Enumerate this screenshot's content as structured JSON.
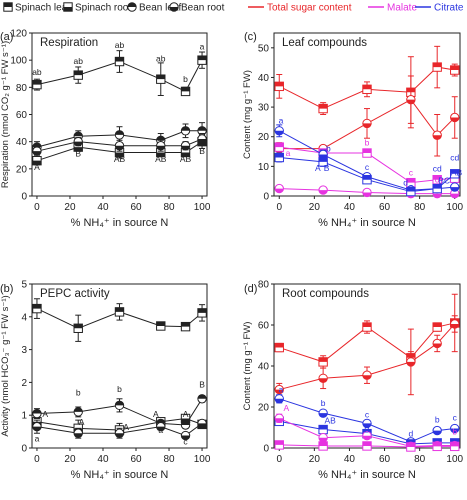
{
  "legend_left": [
    {
      "label": "Spinach leaf",
      "fill": "top"
    },
    {
      "label": "Spinach root",
      "fill": "bottom"
    },
    {
      "label": "Bean leaf",
      "fill": "top"
    },
    {
      "label": "Bean root",
      "fill": "bottom"
    }
  ],
  "legend_right": [
    {
      "label": "Total sugar content",
      "color": "#e8262a"
    },
    {
      "label": "Malate",
      "color": "#e633e0"
    },
    {
      "label": "Citrate",
      "color": "#2b35e0"
    }
  ],
  "colors": {
    "sugar": "#e8262a",
    "malate": "#e633e0",
    "citrate": "#2b35e0",
    "axis": "#222222"
  },
  "chart_data": [
    {
      "panel": "(a)",
      "title": "Respiration",
      "type": "line",
      "ylabel": "Respiration (nmol CO₂ g⁻¹ FW s⁻¹)",
      "xlabel": "% NH₄⁺ in source N",
      "x": [
        0,
        25,
        50,
        75,
        90,
        100
      ],
      "xticks": [
        0,
        20,
        40,
        60,
        80,
        100
      ],
      "ylim": [
        0,
        120
      ],
      "yticks": [
        0,
        20,
        40,
        60,
        80,
        100,
        120
      ],
      "series": [
        {
          "name": "Spinach leaf",
          "marker": "square",
          "half": "top",
          "values": [
            82,
            89,
            99,
            86,
            77,
            100
          ],
          "errors": [
            4,
            6,
            8,
            12,
            3,
            6
          ]
        },
        {
          "name": "Spinach root",
          "marker": "square",
          "half": "bottom",
          "values": [
            26,
            36,
            32,
            32,
            32,
            40
          ],
          "errors": [
            3,
            3,
            4,
            3,
            2,
            5
          ]
        },
        {
          "name": "Bean leaf",
          "marker": "circle",
          "half": "top",
          "values": [
            36,
            44,
            45,
            41,
            48,
            48
          ],
          "errors": [
            4,
            4,
            6,
            5,
            5,
            6
          ]
        },
        {
          "name": "Bean root",
          "marker": "circle",
          "half": "bottom",
          "values": [
            33,
            40,
            37,
            37,
            37,
            42
          ],
          "errors": [
            3,
            3,
            4,
            4,
            3,
            4
          ]
        }
      ],
      "annotations": [
        {
          "text": "ab",
          "x": 0,
          "y": 89
        },
        {
          "text": "ab",
          "x": 25,
          "y": 97
        },
        {
          "text": "ab",
          "x": 50,
          "y": 109
        },
        {
          "text": "ab",
          "x": 75,
          "y": 99
        },
        {
          "text": "b",
          "x": 90,
          "y": 84
        },
        {
          "text": "a",
          "x": 100,
          "y": 108
        },
        {
          "text": "A",
          "x": 0,
          "y": 19
        },
        {
          "text": "B",
          "x": 25,
          "y": 29
        },
        {
          "text": "AB",
          "x": 50,
          "y": 25
        },
        {
          "text": "AB",
          "x": 75,
          "y": 25
        },
        {
          "text": "AB",
          "x": 90,
          "y": 25
        },
        {
          "text": "B",
          "x": 100,
          "y": 31
        }
      ]
    },
    {
      "panel": "(b)",
      "title": "PEPC activity",
      "type": "line",
      "ylabel": "Activity (nmol HCO₃⁻ g⁻¹ FW s⁻¹)",
      "xlabel": "% NH₄⁺ in source N",
      "x": [
        0,
        25,
        50,
        75,
        90,
        100
      ],
      "xticks": [
        0,
        20,
        40,
        60,
        80,
        100
      ],
      "ylim": [
        0,
        5
      ],
      "yticks": [
        0,
        1,
        2,
        3,
        4,
        5
      ],
      "series": [
        {
          "name": "Spinach leaf",
          "marker": "square",
          "half": "top",
          "values": [
            4.25,
            3.65,
            4.15,
            3.72,
            3.7,
            4.12
          ],
          "errors": [
            0.3,
            0.4,
            0.25,
            0.08,
            0.08,
            0.25
          ]
        },
        {
          "name": "Spinach root",
          "marker": "square",
          "half": "bottom",
          "values": [
            0.8,
            0.6,
            0.55,
            0.8,
            0.9,
            0.72
          ],
          "errors": [
            0.2,
            0.25,
            0.2,
            0.1,
            0.1,
            0.1
          ]
        },
        {
          "name": "Bean leaf",
          "marker": "circle",
          "half": "top",
          "values": [
            1.05,
            1.1,
            1.3,
            0.75,
            0.7,
            1.5
          ],
          "errors": [
            0.15,
            0.15,
            0.2,
            0.1,
            0.1,
            0.1
          ]
        },
        {
          "name": "Bean root",
          "marker": "circle",
          "half": "bottom",
          "values": [
            0.65,
            0.45,
            0.45,
            0.65,
            0.38,
            0.75
          ],
          "errors": [
            0.2,
            0.15,
            0.15,
            0.1,
            0.08,
            0.1
          ]
        }
      ],
      "annotations": [
        {
          "text": "A",
          "x": 5,
          "y": 0.95
        },
        {
          "text": "a",
          "x": 0,
          "y": 0.2
        },
        {
          "text": "b",
          "x": 25,
          "y": 1.6
        },
        {
          "text": "A",
          "x": 27,
          "y": 0.7
        },
        {
          "text": "b",
          "x": 50,
          "y": 1.7
        },
        {
          "text": "A",
          "x": 54,
          "y": 0.55
        },
        {
          "text": "A",
          "x": 72,
          "y": 0.95
        },
        {
          "text": "a",
          "x": 75,
          "y": 0.45
        },
        {
          "text": "c",
          "x": 90,
          "y": 0.1
        },
        {
          "text": "A",
          "x": 90,
          "y": 0.95
        },
        {
          "text": "B",
          "x": 100,
          "y": 1.85
        }
      ]
    },
    {
      "panel": "(c)",
      "title": "Leaf compounds",
      "type": "line",
      "ylabel": "Content (mg g⁻¹ FW)",
      "xlabel": "% NH₄⁺ in source N",
      "x": [
        0,
        25,
        50,
        75,
        90,
        100
      ],
      "xticks": [
        0,
        20,
        40,
        60,
        80,
        100
      ],
      "ylim": [
        0,
        55
      ],
      "yticks": [
        0,
        10,
        20,
        30,
        40,
        50
      ],
      "series": [
        {
          "name": "Total sugar content",
          "group": "sugar",
          "marker": "square",
          "half": "top",
          "values": [
            37,
            29.5,
            36,
            35,
            43.5,
            42.5
          ],
          "errors": [
            4,
            2,
            2.5,
            12,
            7,
            2
          ]
        },
        {
          "name": "Total sugar content",
          "group": "sugar",
          "marker": "circle",
          "half": "bottom",
          "values": [
            16,
            16,
            24.5,
            32.5,
            20.5,
            26.5
          ],
          "errors": [
            2,
            1,
            5,
            8,
            7,
            7
          ]
        },
        {
          "name": "Malate",
          "group": "malate",
          "marker": "square",
          "half": "top",
          "values": [
            16.5,
            14.5,
            14.5,
            4.5,
            5.5,
            6
          ],
          "errors": [
            1,
            0.8,
            0.8,
            0.6,
            0.6,
            0.6
          ]
        },
        {
          "name": "Malate",
          "group": "malate",
          "marker": "circle",
          "half": "bottom",
          "values": [
            2.5,
            2,
            1.2,
            0.8,
            0.8,
            0.8
          ],
          "errors": [
            0.6,
            0.4,
            0.3,
            0.2,
            0.2,
            0.2
          ]
        },
        {
          "name": "Citrate",
          "group": "citrate",
          "marker": "circle",
          "half": "bottom",
          "values": [
            22,
            14,
            6.5,
            2,
            2.5,
            3
          ],
          "errors": [
            2,
            1.5,
            1,
            0.5,
            0.6,
            0.6
          ]
        },
        {
          "name": "Citrate",
          "group": "citrate",
          "marker": "square",
          "half": "top",
          "values": [
            13,
            11.5,
            5.5,
            1.5,
            2.5,
            7.5
          ],
          "errors": [
            1.5,
            1.5,
            1,
            0.5,
            0.5,
            1
          ]
        }
      ],
      "annotations": [
        {
          "text": "a",
          "x": 1,
          "y": 24.5,
          "color": "#2b35e0"
        },
        {
          "text": "a",
          "x": 5,
          "y": 13.5,
          "color": "#e633e0"
        },
        {
          "text": "b",
          "x": 28,
          "y": 15,
          "color": "#2b35e0"
        },
        {
          "text": "b",
          "x": 50,
          "y": 17,
          "color": "#e633e0"
        },
        {
          "text": "A",
          "x": 22,
          "y": 8.5,
          "color": "#2b35e0"
        },
        {
          "text": "B",
          "x": 27,
          "y": 8.5,
          "color": "#2b35e0"
        },
        {
          "text": "c",
          "x": 50,
          "y": 8.8,
          "color": "#2b35e0"
        },
        {
          "text": "c",
          "x": 75,
          "y": 7,
          "color": "#e633e0"
        },
        {
          "text": "d",
          "x": 72,
          "y": 3.6,
          "color": "#2b35e0"
        },
        {
          "text": "C",
          "x": 75,
          "y": 1.7,
          "color": "#2b35e0"
        },
        {
          "text": "cd",
          "x": 90,
          "y": 8.3,
          "color": "#2b35e0"
        },
        {
          "text": "cd",
          "x": 100,
          "y": 12,
          "color": "#2b35e0"
        },
        {
          "text": "d",
          "x": 90,
          "y": 4.5,
          "color": "#e633e0"
        },
        {
          "text": "BC",
          "x": 94,
          "y": 4.2,
          "color": "#2b35e0"
        },
        {
          "text": "AB",
          "x": 101,
          "y": 7,
          "color": "#2b35e0"
        }
      ]
    },
    {
      "panel": "(d)",
      "title": "Root compounds",
      "type": "line",
      "ylabel": "Content (mg g⁻¹ FW)",
      "xlabel": "% NH₄⁺ in source N",
      "x": [
        0,
        25,
        50,
        75,
        90,
        100
      ],
      "xticks": [
        0,
        20,
        40,
        60,
        80,
        100
      ],
      "ylim": [
        0,
        80
      ],
      "yticks": [
        0,
        20,
        40,
        60,
        80
      ],
      "series": [
        {
          "name": "Total sugar content",
          "group": "sugar",
          "marker": "square",
          "half": "top",
          "values": [
            49,
            42,
            59,
            44,
            59,
            61
          ],
          "errors": [
            2,
            3,
            3,
            3,
            2,
            14
          ]
        },
        {
          "name": "Total sugar content",
          "group": "sugar",
          "marker": "circle",
          "half": "bottom",
          "values": [
            28.5,
            34,
            35.5,
            42,
            51,
            60.5
          ],
          "errors": [
            3,
            5,
            4,
            16,
            4,
            4
          ]
        },
        {
          "name": "Citrate",
          "group": "citrate",
          "marker": "circle",
          "half": "bottom",
          "values": [
            24,
            17,
            12,
            3,
            8.5,
            9.5
          ],
          "errors": [
            2,
            1.5,
            1.5,
            0.8,
            1,
            1.5
          ]
        },
        {
          "name": "Citrate",
          "group": "citrate",
          "marker": "square",
          "half": "top",
          "values": [
            13,
            9,
            7,
            2,
            2.5,
            2.5
          ],
          "errors": [
            2,
            1.5,
            1.5,
            0.5,
            0.5,
            0.5
          ]
        },
        {
          "name": "Malate",
          "group": "malate",
          "marker": "circle",
          "half": "bottom",
          "values": [
            14.5,
            5,
            6,
            0.8,
            1.2,
            1.2
          ],
          "errors": [
            2,
            0.8,
            0.8,
            0.3,
            0.3,
            0.3
          ]
        },
        {
          "name": "Malate",
          "group": "malate",
          "marker": "square",
          "half": "top",
          "values": [
            1.5,
            1,
            1,
            0.5,
            0.8,
            0.8
          ],
          "errors": [
            0.4,
            0.3,
            0.3,
            0.2,
            0.2,
            0.2
          ]
        }
      ],
      "annotations": [
        {
          "text": "a",
          "x": 1,
          "y": 27,
          "color": "#2b35e0"
        },
        {
          "text": "A",
          "x": 4,
          "y": 18,
          "color": "#e633e0"
        },
        {
          "text": "b",
          "x": 25,
          "y": 20.5,
          "color": "#2b35e0"
        },
        {
          "text": "AB",
          "x": 29,
          "y": 12,
          "color": "#2b35e0"
        },
        {
          "text": "c",
          "x": 50,
          "y": 15,
          "color": "#2b35e0"
        },
        {
          "text": "B",
          "x": 50,
          "y": 7.5,
          "color": "#2b35e0"
        },
        {
          "text": "d",
          "x": 75,
          "y": 5.5,
          "color": "#2b35e0"
        },
        {
          "text": "b",
          "x": 90,
          "y": 12.5,
          "color": "#2b35e0"
        },
        {
          "text": "c",
          "x": 100,
          "y": 13.5,
          "color": "#2b35e0"
        },
        {
          "text": "b",
          "x": 100,
          "y": 6.5,
          "color": "#e633e0"
        }
      ]
    }
  ]
}
